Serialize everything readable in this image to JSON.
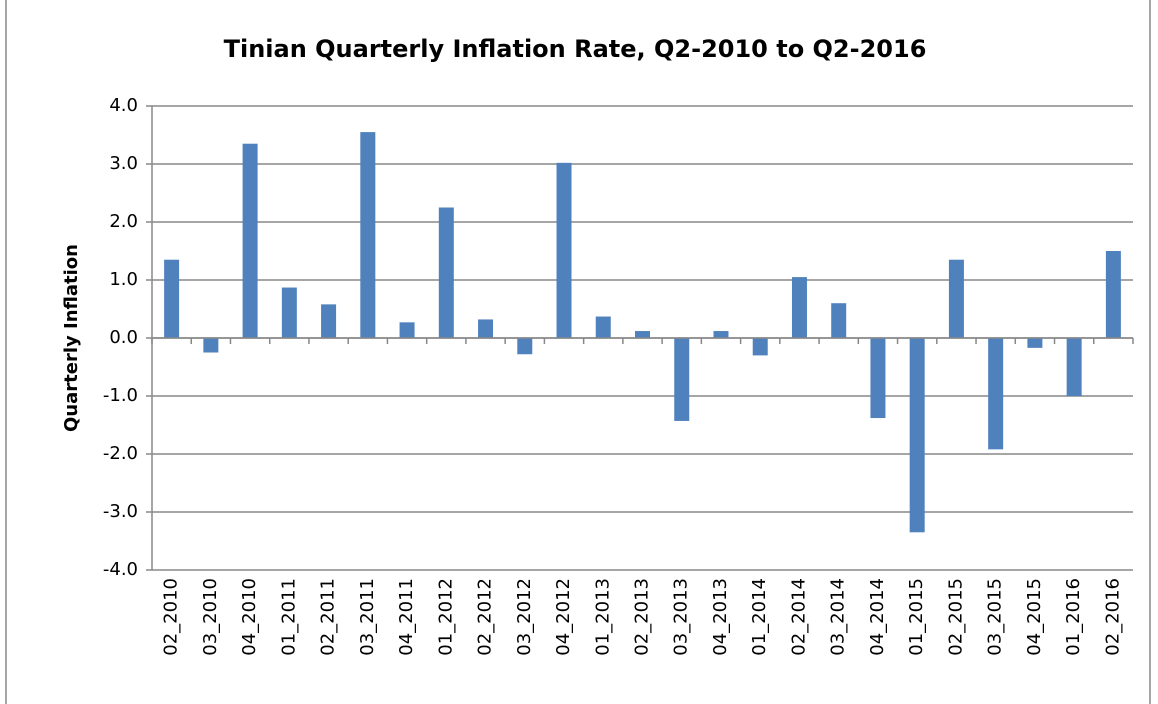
{
  "chart_data": {
    "type": "bar",
    "title": "Tinian Quarterly Inflation Rate, Q2-2010 to Q2-2016",
    "ylabel": "Quarterly Inflation",
    "categories": [
      "02_2010",
      "03_2010",
      "04_2010",
      "01_2011",
      "02_2011",
      "03_2011",
      "04_2011",
      "01_2012",
      "02_2012",
      "03_2012",
      "04_2012",
      "01_2013",
      "02_2013",
      "03_2013",
      "04_2013",
      "01_2014",
      "02_2014",
      "03_2014",
      "04_2014",
      "01_2015",
      "02_2015",
      "03_2015",
      "04_2015",
      "01_2016",
      "02_2016"
    ],
    "values": [
      1.35,
      -0.25,
      3.35,
      0.87,
      0.58,
      3.55,
      0.27,
      2.25,
      0.32,
      -0.28,
      3.02,
      0.37,
      0.12,
      -1.43,
      0.12,
      -0.3,
      1.05,
      0.6,
      -1.38,
      -3.35,
      1.35,
      -1.92,
      -0.17,
      -1.0,
      1.5
    ],
    "color": "#4f81bd",
    "ylim": [
      -4,
      4
    ],
    "yticks": [
      {
        "value": -4,
        "label": "-4.0"
      },
      {
        "value": -3,
        "label": "-3.0"
      },
      {
        "value": -2,
        "label": "-2.0"
      },
      {
        "value": -1,
        "label": "-1.0"
      },
      {
        "value": 0,
        "label": "0.0"
      },
      {
        "value": 1,
        "label": "1.0"
      },
      {
        "value": 2,
        "label": "2.0"
      },
      {
        "value": 3,
        "label": "3.0"
      },
      {
        "value": 4,
        "label": "4.0"
      }
    ],
    "grid": true
  }
}
